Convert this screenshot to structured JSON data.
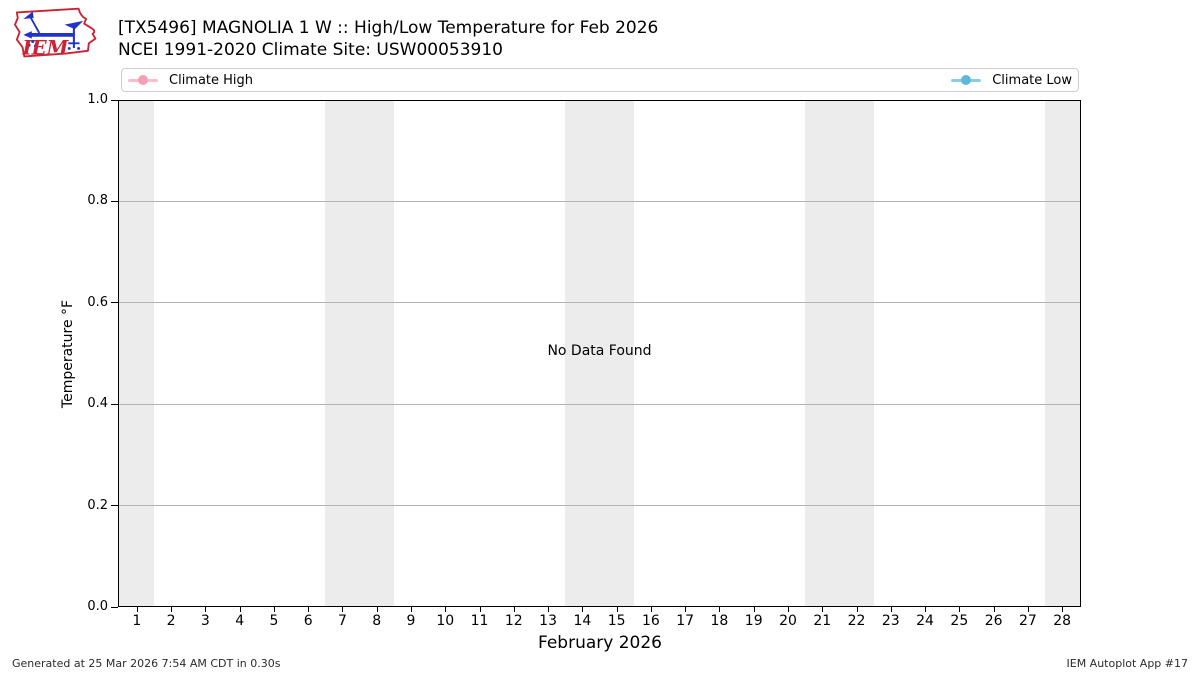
{
  "header": {
    "logo_text": "IEM",
    "title_line1": "[TX5496] MAGNOLIA 1 W :: High/Low Temperature for Feb 2026",
    "title_line2": "NCEI 1991-2020 Climate Site: USW00053910"
  },
  "legend": {
    "entries": [
      {
        "label": "Climate High",
        "line_color": "#ffbdcb",
        "marker_color": "#f3a0b5"
      },
      {
        "label": "Climate Low",
        "line_color": "#87ceeb",
        "marker_color": "#5fb7dc"
      }
    ]
  },
  "chart_data": {
    "type": "line",
    "title": "[TX5496] MAGNOLIA 1 W :: High/Low Temperature for Feb 2026",
    "subtitle": "NCEI 1991-2020 Climate Site: USW00053910",
    "xlabel": "February 2026",
    "ylabel": "Temperature °F",
    "xlim": [
      0.45,
      28.55
    ],
    "ylim": [
      0.0,
      1.0
    ],
    "x_ticks": [
      1,
      2,
      3,
      4,
      5,
      6,
      7,
      8,
      9,
      10,
      11,
      12,
      13,
      14,
      15,
      16,
      17,
      18,
      19,
      20,
      21,
      22,
      23,
      24,
      25,
      26,
      27,
      28
    ],
    "y_ticks": [
      0.0,
      0.2,
      0.4,
      0.6,
      0.8,
      1.0
    ],
    "y_tick_labels": [
      "0.0",
      "0.2",
      "0.4",
      "0.6",
      "0.8",
      "1.0"
    ],
    "grid": true,
    "legend_position": "top, full-width expanded, high left / low right",
    "no_data_text": "No Data Found",
    "series": [
      {
        "name": "Climate High",
        "color": "#ffbdcb",
        "x": [],
        "values": []
      },
      {
        "name": "Climate Low",
        "color": "#87ceeb",
        "x": [],
        "values": []
      }
    ],
    "weekend_shading": {
      "color": "#ececec",
      "ranges": [
        [
          0.45,
          1.5
        ],
        [
          6.5,
          8.5
        ],
        [
          13.5,
          15.5
        ],
        [
          20.5,
          22.5
        ],
        [
          27.5,
          28.55
        ]
      ]
    }
  },
  "footer": {
    "left": "Generated at 25 Mar 2026 7:54 AM CDT in 0.30s",
    "right": "IEM Autoplot App #17"
  }
}
